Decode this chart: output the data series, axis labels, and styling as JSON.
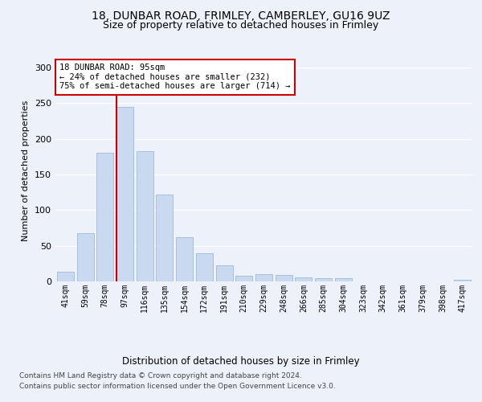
{
  "title1": "18, DUNBAR ROAD, FRIMLEY, CAMBERLEY, GU16 9UZ",
  "title2": "Size of property relative to detached houses in Frimley",
  "xlabel": "Distribution of detached houses by size in Frimley",
  "ylabel": "Number of detached properties",
  "categories": [
    "41sqm",
    "59sqm",
    "78sqm",
    "97sqm",
    "116sqm",
    "135sqm",
    "154sqm",
    "172sqm",
    "191sqm",
    "210sqm",
    "229sqm",
    "248sqm",
    "266sqm",
    "285sqm",
    "304sqm",
    "323sqm",
    "342sqm",
    "361sqm",
    "379sqm",
    "398sqm",
    "417sqm"
  ],
  "values": [
    13,
    68,
    180,
    245,
    183,
    122,
    62,
    40,
    22,
    8,
    10,
    9,
    6,
    5,
    4,
    0,
    0,
    0,
    0,
    0,
    2
  ],
  "bar_color": "#c9d9ef",
  "bar_edge_color": "#a0b8d8",
  "vline_color": "#cc0000",
  "annotation_text": "18 DUNBAR ROAD: 95sqm\n← 24% of detached houses are smaller (232)\n75% of semi-detached houses are larger (714) →",
  "annotation_box_color": "#ffffff",
  "annotation_box_edge": "#cc0000",
  "footer1": "Contains HM Land Registry data © Crown copyright and database right 2024.",
  "footer2": "Contains public sector information licensed under the Open Government Licence v3.0.",
  "bg_color": "#edf1f9",
  "plot_bg_color": "#edf1f9",
  "grid_color": "#ffffff",
  "ylim": [
    0,
    310
  ],
  "yticks": [
    0,
    50,
    100,
    150,
    200,
    250,
    300
  ]
}
